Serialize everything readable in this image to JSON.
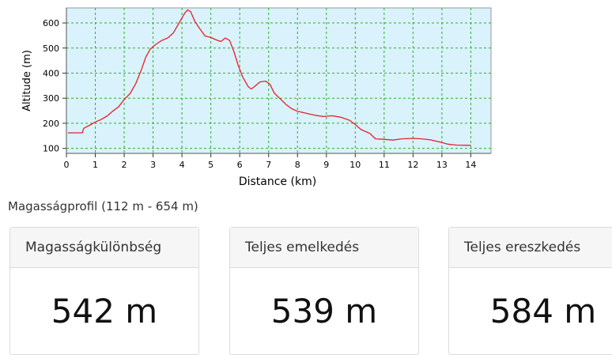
{
  "chart_data": {
    "type": "line",
    "xlabel": "Distance (km)",
    "ylabel": "Altitude (m)",
    "xlim": [
      0,
      14.7
    ],
    "ylim": [
      80,
      660
    ],
    "xticks": [
      0,
      1,
      2,
      3,
      4,
      5,
      6,
      7,
      8,
      9,
      10,
      11,
      12,
      13,
      14
    ],
    "yticks": [
      100,
      200,
      300,
      400,
      500,
      600
    ],
    "grid": true,
    "background_color": "#d9f2fb",
    "grid_color": "#2fae2f",
    "line_color": "#e8202a",
    "series": [
      {
        "x": [
          0.05,
          0.3,
          0.55,
          0.6,
          0.8,
          1.0,
          1.2,
          1.4,
          1.6,
          1.8,
          2.0,
          2.2,
          2.4,
          2.6,
          2.75,
          2.9,
          3.1,
          3.3,
          3.5,
          3.7,
          3.9,
          4.1,
          4.2,
          4.3,
          4.45,
          4.6,
          4.8,
          5.0,
          5.2,
          5.35,
          5.5,
          5.65,
          5.8,
          5.95,
          6.1,
          6.3,
          6.4,
          6.5,
          6.7,
          6.9,
          7.05,
          7.2,
          7.4,
          7.6,
          7.8,
          8.0,
          8.3,
          8.6,
          8.9,
          9.2,
          9.5,
          9.8,
          10.0,
          10.2,
          10.5,
          10.7,
          11.0,
          11.3,
          11.6,
          12.0,
          12.3,
          12.6,
          12.9,
          13.2,
          13.5,
          14.0
        ],
        "y": [
          162,
          162,
          162,
          180,
          192,
          205,
          215,
          228,
          248,
          265,
          295,
          318,
          358,
          415,
          465,
          495,
          515,
          530,
          540,
          560,
          600,
          640,
          652,
          645,
          605,
          580,
          548,
          542,
          532,
          526,
          540,
          530,
          485,
          430,
          385,
          345,
          337,
          345,
          365,
          368,
          355,
          320,
          298,
          275,
          258,
          248,
          240,
          232,
          227,
          230,
          224,
          212,
          195,
          175,
          160,
          138,
          136,
          133,
          138,
          140,
          138,
          134,
          126,
          117,
          113,
          112
        ]
      }
    ]
  },
  "caption": "Magasságprofil (112 m - 654 m)",
  "stats": [
    {
      "label": "Magasságkülönbség",
      "value": "542 m"
    },
    {
      "label": "Teljes emelkedés",
      "value": "539 m"
    },
    {
      "label": "Teljes ereszkedés",
      "value": "584 m"
    }
  ]
}
